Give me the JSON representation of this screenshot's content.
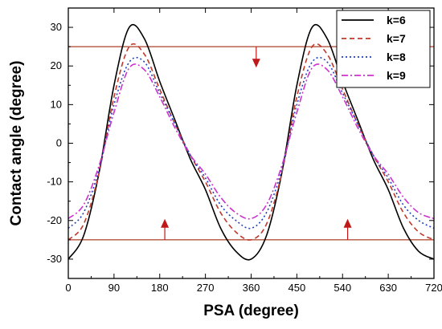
{
  "chart_data": {
    "type": "line",
    "xlabel": "PSA (degree)",
    "ylabel": "Contact angle (degree)",
    "xlim": [
      0,
      720
    ],
    "ylim": [
      -35,
      35
    ],
    "xticks": [
      0,
      90,
      180,
      270,
      360,
      450,
      540,
      630,
      720
    ],
    "yticks": [
      -30,
      -20,
      -10,
      0,
      10,
      20,
      30
    ],
    "grid": false,
    "legend_position": "top-right",
    "series": [
      {
        "name": "k=6",
        "color": "#000000",
        "dash": "solid",
        "x": [
          0,
          30,
          60,
          90,
          120,
          150,
          180,
          210,
          240,
          270,
          300,
          330,
          360,
          390,
          420,
          450,
          480,
          510,
          540,
          570,
          600,
          630,
          660,
          690,
          720
        ],
        "y": [
          -30,
          -24,
          -8,
          15,
          30,
          27,
          16,
          6,
          -4,
          -12,
          -22,
          -28,
          -30,
          -24,
          -8,
          15,
          30,
          27,
          16,
          6,
          -4,
          -12,
          -22,
          -28,
          -30
        ]
      },
      {
        "name": "k=7",
        "color": "#c0392b",
        "dash": "dashed",
        "x": [
          0,
          30,
          60,
          90,
          120,
          150,
          180,
          210,
          240,
          270,
          300,
          330,
          360,
          390,
          420,
          450,
          480,
          510,
          540,
          570,
          600,
          630,
          660,
          690,
          720
        ],
        "y": [
          -25,
          -21,
          -8,
          12,
          25,
          23,
          14,
          5,
          -3,
          -10,
          -18,
          -23,
          -25,
          -21,
          -8,
          12,
          25,
          23,
          14,
          5,
          -3,
          -10,
          -18,
          -23,
          -25
        ]
      },
      {
        "name": "k=8",
        "color": "#1f3fbf",
        "dash": "dotted",
        "x": [
          0,
          30,
          60,
          90,
          120,
          150,
          180,
          210,
          240,
          270,
          300,
          330,
          360,
          390,
          420,
          450,
          480,
          510,
          540,
          570,
          600,
          630,
          660,
          690,
          720
        ],
        "y": [
          -22,
          -18,
          -7,
          10,
          21,
          21,
          13,
          5,
          -3,
          -9,
          -16,
          -20,
          -22,
          -18,
          -7,
          10,
          21,
          21,
          13,
          5,
          -3,
          -9,
          -16,
          -20,
          -22
        ]
      },
      {
        "name": "k=9",
        "color": "#cc33cc",
        "dash": "dashdot",
        "x": [
          0,
          30,
          60,
          90,
          120,
          150,
          180,
          210,
          240,
          270,
          300,
          330,
          360,
          390,
          420,
          450,
          480,
          510,
          540,
          570,
          600,
          630,
          660,
          690,
          720
        ],
        "y": [
          -19.5,
          -16,
          -6,
          8,
          19.5,
          19,
          12,
          4,
          -3,
          -8,
          -14,
          -18,
          -19.5,
          -16,
          -6,
          8,
          19.5,
          19,
          12,
          4,
          -3,
          -8,
          -14,
          -18,
          -19.5
        ]
      }
    ],
    "reference_lines": [
      {
        "y": 25,
        "color": "#b5523b"
      },
      {
        "y": -25,
        "color": "#b5523b"
      }
    ],
    "arrows": [
      {
        "x": 370,
        "from_y": 25,
        "to_y": 20,
        "direction": "down",
        "color": "#c01818"
      },
      {
        "x": 190,
        "from_y": -25,
        "to_y": -20,
        "direction": "up",
        "color": "#c01818"
      },
      {
        "x": 550,
        "from_y": -25,
        "to_y": -20,
        "direction": "up",
        "color": "#c01818"
      }
    ]
  }
}
